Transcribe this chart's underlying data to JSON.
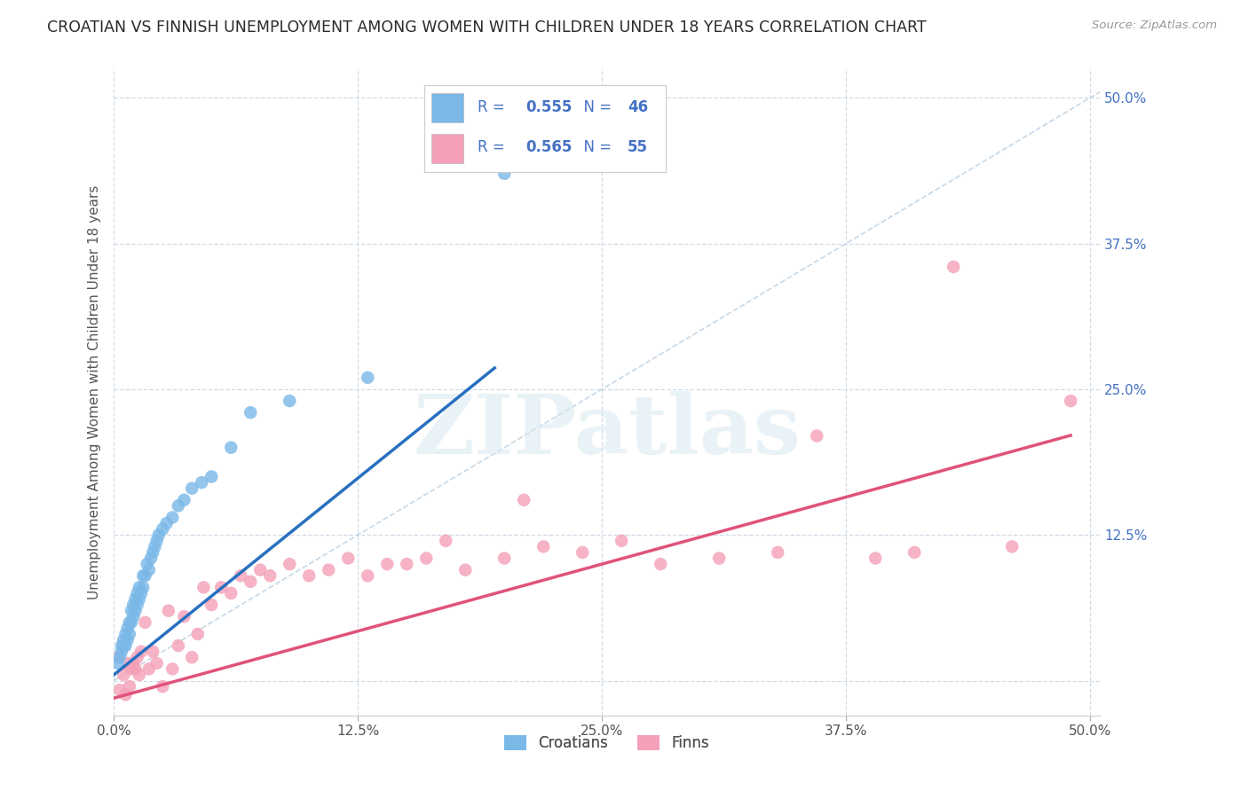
{
  "title": "CROATIAN VS FINNISH UNEMPLOYMENT AMONG WOMEN WITH CHILDREN UNDER 18 YEARS CORRELATION CHART",
  "source": "Source: ZipAtlas.com",
  "ylabel": "Unemployment Among Women with Children Under 18 years",
  "xlim": [
    0.0,
    0.505
  ],
  "ylim": [
    -0.03,
    0.525
  ],
  "xtick_labels": [
    "0.0%",
    "12.5%",
    "25.0%",
    "37.5%",
    "50.0%"
  ],
  "xtick_vals": [
    0.0,
    0.125,
    0.25,
    0.375,
    0.5
  ],
  "ytick_labels_right": [
    "50.0%",
    "37.5%",
    "25.0%",
    "12.5%"
  ],
  "ytick_vals_right": [
    0.5,
    0.375,
    0.25,
    0.125
  ],
  "croatian_color": "#7ab8e8",
  "finnish_color": "#f4a0b8",
  "trendline_croatian_color": "#2870c0",
  "trendline_finnish_color": "#e0527a",
  "diagonal_color": "#b8cee0",
  "R_croatian": "0.555",
  "N_croatian": "46",
  "R_finnish": "0.565",
  "N_finnish": "55",
  "background_color": "#ffffff",
  "grid_color": "#d0dce8",
  "title_fontsize": 12.5,
  "watermark_text": "ZIPatlas",
  "legend_color": "#4472c4",
  "right_tick_color": "#4472c4",
  "croatians_x": [
    0.002,
    0.003,
    0.004,
    0.004,
    0.005,
    0.005,
    0.006,
    0.006,
    0.007,
    0.007,
    0.008,
    0.008,
    0.009,
    0.009,
    0.01,
    0.01,
    0.011,
    0.011,
    0.012,
    0.012,
    0.013,
    0.013,
    0.014,
    0.015,
    0.015,
    0.016,
    0.017,
    0.018,
    0.019,
    0.02,
    0.021,
    0.022,
    0.023,
    0.025,
    0.027,
    0.03,
    0.033,
    0.036,
    0.04,
    0.045,
    0.05,
    0.06,
    0.07,
    0.09,
    0.13,
    0.2
  ],
  "croatians_y": [
    0.015,
    0.02,
    0.025,
    0.03,
    0.03,
    0.035,
    0.03,
    0.04,
    0.035,
    0.045,
    0.04,
    0.05,
    0.05,
    0.06,
    0.055,
    0.065,
    0.06,
    0.07,
    0.065,
    0.075,
    0.07,
    0.08,
    0.075,
    0.08,
    0.09,
    0.09,
    0.1,
    0.095,
    0.105,
    0.11,
    0.115,
    0.12,
    0.125,
    0.13,
    0.135,
    0.14,
    0.15,
    0.155,
    0.165,
    0.17,
    0.175,
    0.2,
    0.23,
    0.24,
    0.26,
    0.435
  ],
  "finns_x": [
    0.002,
    0.003,
    0.005,
    0.006,
    0.007,
    0.008,
    0.009,
    0.01,
    0.011,
    0.012,
    0.013,
    0.014,
    0.016,
    0.018,
    0.02,
    0.022,
    0.025,
    0.028,
    0.03,
    0.033,
    0.036,
    0.04,
    0.043,
    0.046,
    0.05,
    0.055,
    0.06,
    0.065,
    0.07,
    0.075,
    0.08,
    0.09,
    0.1,
    0.11,
    0.12,
    0.13,
    0.14,
    0.15,
    0.16,
    0.17,
    0.18,
    0.2,
    0.21,
    0.22,
    0.24,
    0.26,
    0.28,
    0.31,
    0.34,
    0.36,
    0.39,
    0.41,
    0.43,
    0.46,
    0.49
  ],
  "finns_y": [
    0.02,
    -0.008,
    0.005,
    -0.012,
    0.015,
    -0.005,
    0.01,
    0.015,
    0.01,
    0.02,
    0.005,
    0.025,
    0.05,
    0.01,
    0.025,
    0.015,
    -0.005,
    0.06,
    0.01,
    0.03,
    0.055,
    0.02,
    0.04,
    0.08,
    0.065,
    0.08,
    0.075,
    0.09,
    0.085,
    0.095,
    0.09,
    0.1,
    0.09,
    0.095,
    0.105,
    0.09,
    0.1,
    0.1,
    0.105,
    0.12,
    0.095,
    0.105,
    0.155,
    0.115,
    0.11,
    0.12,
    0.1,
    0.105,
    0.11,
    0.21,
    0.105,
    0.11,
    0.355,
    0.115,
    0.24
  ]
}
